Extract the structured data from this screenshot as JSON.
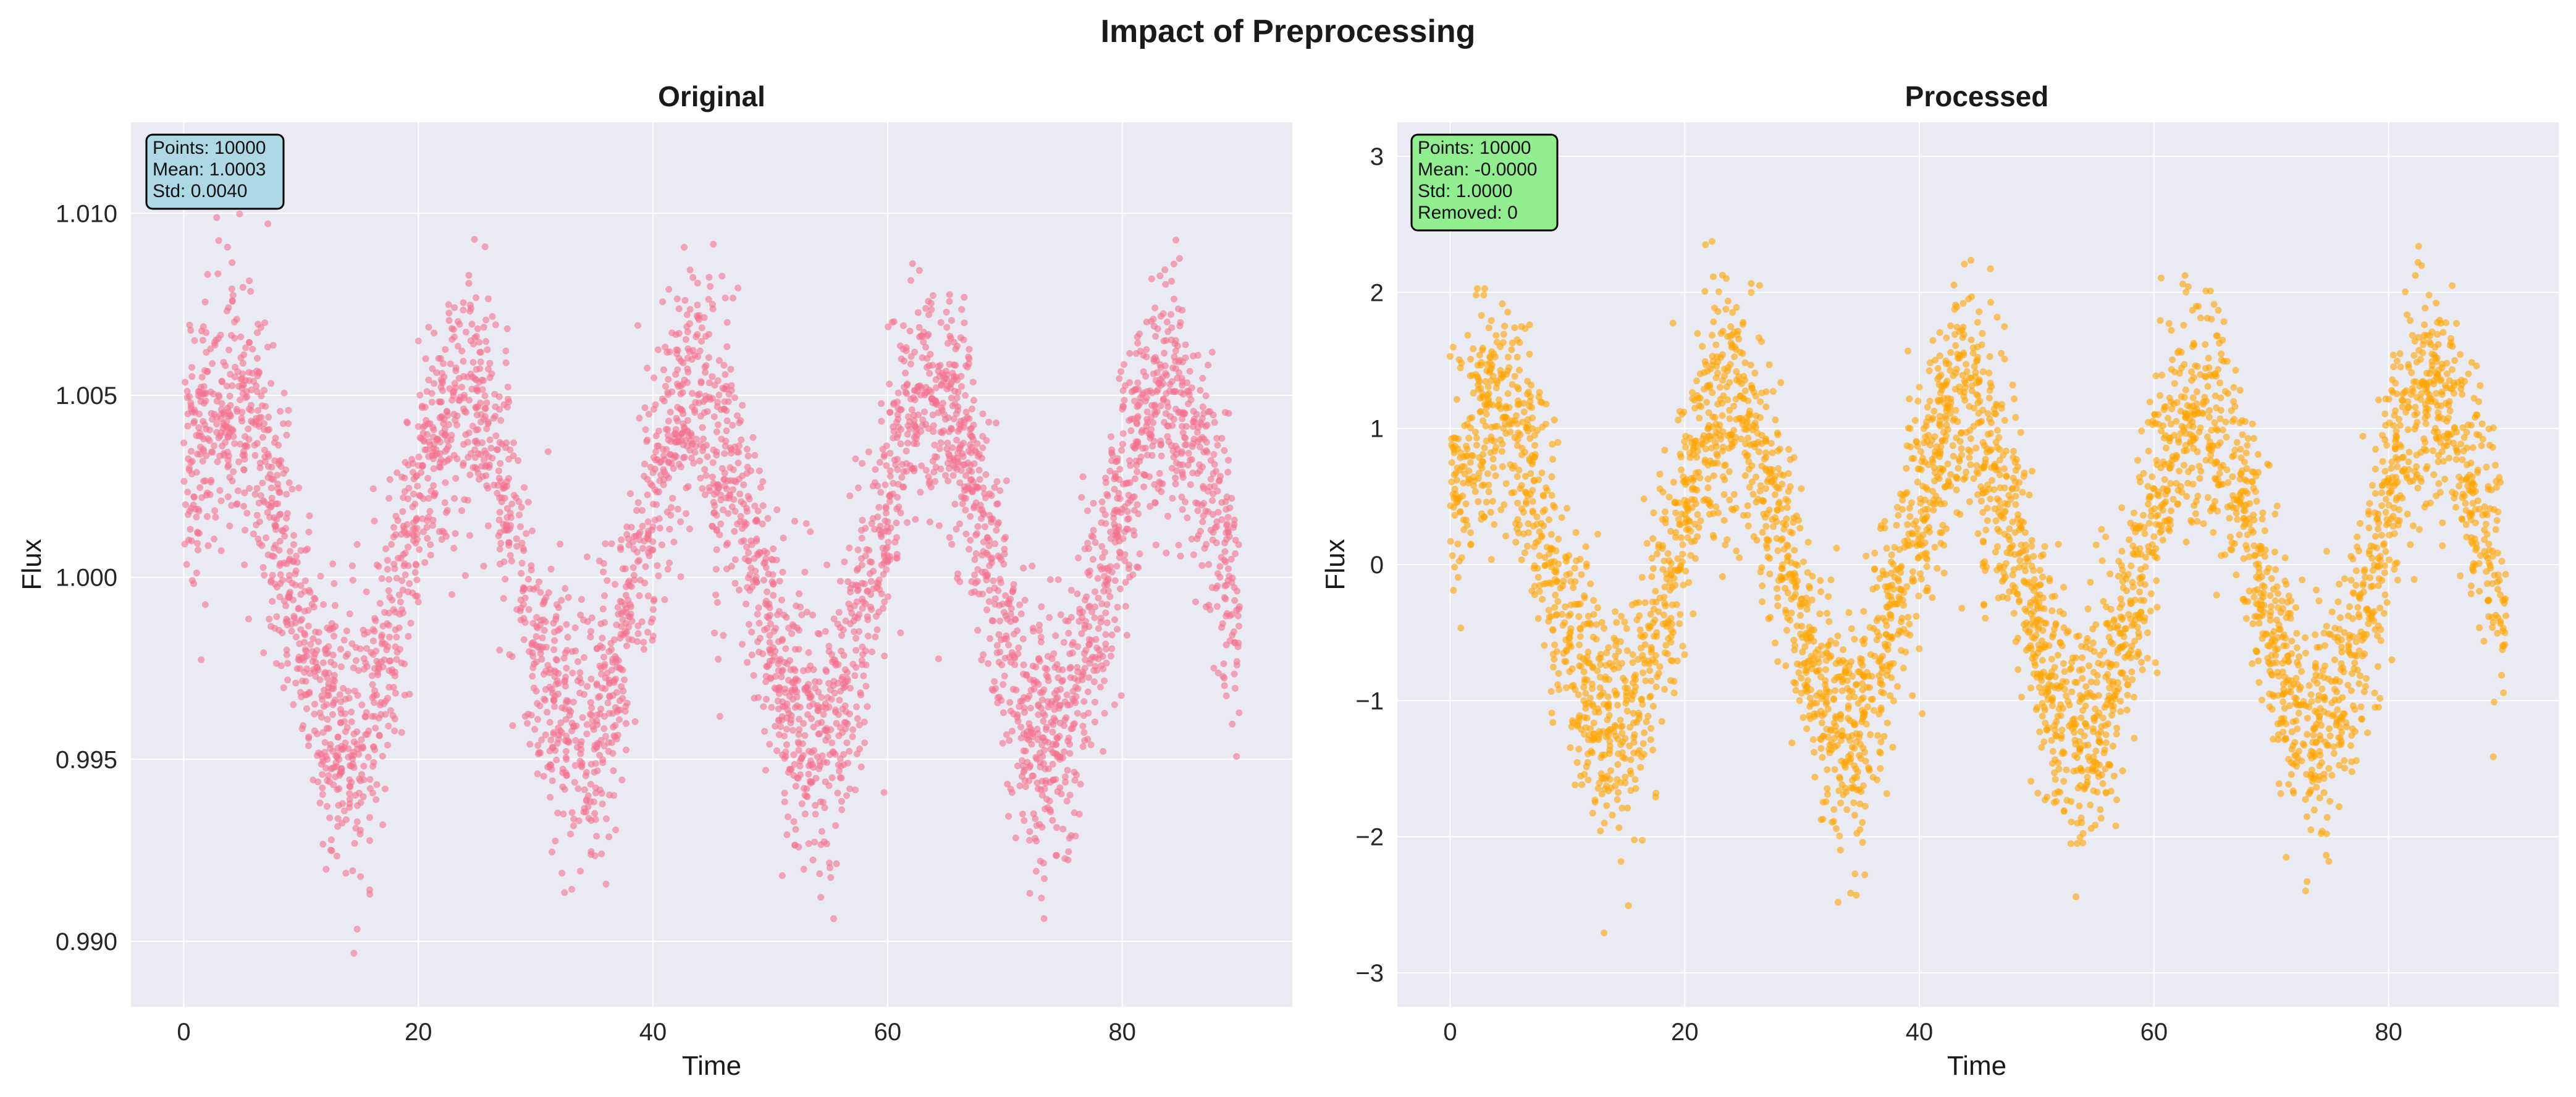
{
  "figure": {
    "title": "Impact of Preprocessing"
  },
  "chart_data": [
    {
      "type": "scatter",
      "title": "Original",
      "xlabel": "Time",
      "ylabel": "Flux",
      "xlim": [
        -4.5,
        94.5
      ],
      "ylim": [
        0.9882,
        1.0125
      ],
      "xticks": [
        0,
        20,
        40,
        60,
        80
      ],
      "xtick_labels": [
        "0",
        "20",
        "40",
        "60",
        "80"
      ],
      "yticks": [
        0.99,
        0.995,
        1.0,
        1.005,
        1.01
      ],
      "ytick_labels": [
        "0.990",
        "0.995",
        "1.000",
        "1.005",
        "1.010"
      ],
      "grid": true,
      "series": [
        {
          "color": "#f4728f",
          "n_points": 10000,
          "mean": 1.0003,
          "std": 0.004,
          "x_range": [
            0,
            90
          ],
          "period": 20,
          "amplitude": 0.0048,
          "noise_sd": 0.0018,
          "dip_times": [
            45.5
          ]
        }
      ],
      "stats_box": {
        "lines": [
          "Points: 10000",
          "Mean: 1.0003",
          "Std: 0.0040"
        ],
        "facecolor": "#add8e6"
      }
    },
    {
      "type": "scatter",
      "title": "Processed",
      "xlabel": "Time",
      "ylabel": "Flux",
      "xlim": [
        -4.5,
        94.5
      ],
      "ylim": [
        -3.25,
        3.25
      ],
      "xticks": [
        0,
        20,
        40,
        60,
        80
      ],
      "xtick_labels": [
        "0",
        "20",
        "40",
        "60",
        "80"
      ],
      "yticks": [
        -3,
        -2,
        -1,
        0,
        1,
        2,
        3
      ],
      "ytick_labels": [
        "−3",
        "−2",
        "−1",
        "0",
        "1",
        "2",
        "3"
      ],
      "grid": true,
      "series": [
        {
          "color": "#ffa500",
          "n_points": 10000,
          "mean": -0.0,
          "std": 1.0,
          "x_range": [
            0,
            90
          ],
          "period": 20,
          "amplitude": 1.2,
          "noise_sd": 0.45,
          "dip_times": [
            45.5
          ]
        }
      ],
      "stats_box": {
        "lines": [
          "Points: 10000",
          "Mean: -0.0000",
          "Std: 1.0000",
          "Removed: 0"
        ],
        "facecolor": "#90ee90"
      }
    }
  ]
}
